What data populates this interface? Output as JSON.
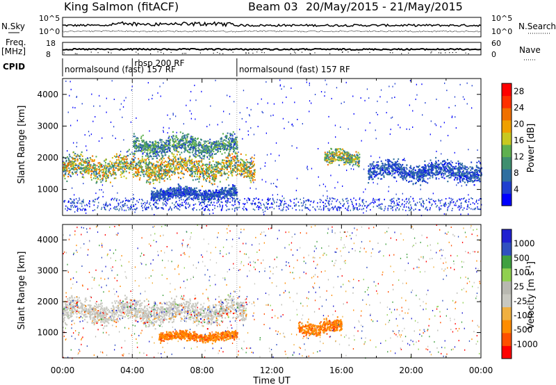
{
  "header": {
    "station": "King Salmon (fitACF)",
    "beam": "Beam 03",
    "date_range": "20/May/2015 - 21/May/2015"
  },
  "noise_panel": {
    "left_label": "N.Sky",
    "right_label": "N.Search",
    "left_ticks": [
      "10^5",
      "10^0"
    ],
    "right_ticks": [
      "10^5",
      "10^0"
    ]
  },
  "freq_panel": {
    "left_label_1": "Freq.",
    "left_label_2": "[MHz]",
    "right_label": "Nave",
    "left_ticks": [
      "18",
      "8"
    ],
    "right_ticks": [
      "60",
      "0"
    ]
  },
  "cpid_panel": {
    "label": "CPID",
    "modes": [
      {
        "text": "normalsound (fast) 157 RF",
        "start_hour": 0
      },
      {
        "text": "rbsp 200 RF",
        "start_hour": 4
      },
      {
        "text": "normalsound (fast) 157 RF",
        "start_hour": 10
      }
    ]
  },
  "colors": {
    "power_scale": [
      "#0000ff",
      "#1f3fd0",
      "#2f6fa0",
      "#3f8f6f",
      "#5fb04f",
      "#c8c820",
      "#f0a000",
      "#f07000",
      "#ff3000",
      "#ff0000"
    ],
    "velocity_scale": [
      "#ff0000",
      "#ff5000",
      "#ff8c00",
      "#f0b040",
      "#c8c8c0",
      "#b8b8b0",
      "#90d050",
      "#40a040",
      "#3050c0",
      "#2020d0"
    ]
  },
  "chart_data": [
    {
      "type": "heatmap",
      "name": "power",
      "ylabel": "Slant Range [km]",
      "ylim": [
        180,
        4500
      ],
      "y_ticks": [
        1000,
        2000,
        3000,
        4000
      ],
      "xlim": [
        0,
        24
      ],
      "colorbar": {
        "label": "Power [dB]",
        "ticks": [
          "4",
          "8",
          "12",
          "16",
          "20",
          "24",
          "28"
        ],
        "range": [
          0,
          30
        ]
      },
      "features": [
        {
          "name": "main echo band",
          "x_start": 0.0,
          "x_end": 11.0,
          "y_center": 1700,
          "y_width": 500,
          "peak_power": 22
        },
        {
          "name": "upper band",
          "x_start": 4.0,
          "x_end": 10.0,
          "y_center": 2400,
          "y_width": 400,
          "peak_power": 14
        },
        {
          "name": "lower echo",
          "x_start": 5.0,
          "x_end": 10.0,
          "y_center": 900,
          "y_width": 250,
          "peak_power": 8
        },
        {
          "name": "afternoon patch",
          "x_start": 15.0,
          "x_end": 17.0,
          "y_center": 2000,
          "y_width": 300,
          "peak_power": 20
        },
        {
          "name": "evening band",
          "x_start": 17.5,
          "x_end": 24.0,
          "y_center": 1600,
          "y_width": 400,
          "peak_power": 8
        }
      ]
    },
    {
      "type": "heatmap",
      "name": "velocity",
      "ylabel": "Slant Range [km]",
      "ylim": [
        180,
        4500
      ],
      "y_ticks": [
        1000,
        2000,
        3000,
        4000
      ],
      "xlim": [
        0,
        24
      ],
      "xlabel": "Time UT",
      "x_tick_labels": [
        "00:00",
        "04:00",
        "08:00",
        "12:00",
        "16:00",
        "20:00",
        "00:00"
      ],
      "colorbar": {
        "label": "Velocity [m s^-1]",
        "ticks": [
          "1000",
          "500",
          "100",
          "25",
          "-25",
          "-100",
          "-500",
          "-1000"
        ]
      },
      "features": [
        {
          "name": "ground scatter band",
          "x_start": 0.0,
          "x_end": 10.5,
          "y_center": 1700,
          "y_width": 500,
          "velocity": 0
        },
        {
          "name": "receding echo",
          "x_start": 5.5,
          "x_end": 10.0,
          "y_center": 900,
          "y_width": 200,
          "velocity": -300
        },
        {
          "name": "afternoon receding",
          "x_start": 13.5,
          "x_end": 16.0,
          "y_center": 1200,
          "y_width": 300,
          "velocity": -250
        }
      ]
    }
  ]
}
